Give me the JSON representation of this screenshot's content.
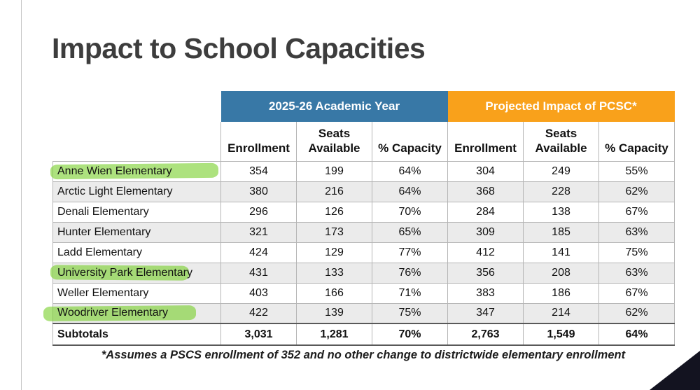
{
  "slide": {
    "title": "Impact to School Capacities",
    "footnote": "*Assumes a PSCS enrollment of 352 and no other change to districtwide elementary enrollment"
  },
  "table": {
    "group_headers": [
      {
        "label": "2025-26 Academic Year",
        "color": "#3878A6"
      },
      {
        "label": "Projected Impact of PCSC*",
        "color": "#F9A11B"
      }
    ],
    "column_headers": [
      "Enrollment",
      "Seats Available",
      "% Capacity",
      "Enrollment",
      "Seats Available",
      "% Capacity"
    ],
    "rows": [
      {
        "school": "Anne Wien Elementary",
        "highlighted": true,
        "values": [
          "354",
          "199",
          "64%",
          "304",
          "249",
          "55%"
        ]
      },
      {
        "school": "Arctic Light Elementary",
        "highlighted": false,
        "values": [
          "380",
          "216",
          "64%",
          "368",
          "228",
          "62%"
        ]
      },
      {
        "school": "Denali Elementary",
        "highlighted": false,
        "values": [
          "296",
          "126",
          "70%",
          "284",
          "138",
          "67%"
        ]
      },
      {
        "school": "Hunter Elementary",
        "highlighted": false,
        "values": [
          "321",
          "173",
          "65%",
          "309",
          "185",
          "63%"
        ]
      },
      {
        "school": "Ladd Elementary",
        "highlighted": false,
        "values": [
          "424",
          "129",
          "77%",
          "412",
          "141",
          "75%"
        ]
      },
      {
        "school": "University Park Elementary",
        "highlighted": true,
        "values": [
          "431",
          "133",
          "76%",
          "356",
          "208",
          "63%"
        ]
      },
      {
        "school": "Weller Elementary",
        "highlighted": false,
        "values": [
          "403",
          "166",
          "71%",
          "383",
          "186",
          "67%"
        ]
      },
      {
        "school": "Woodriver Elementary",
        "highlighted": true,
        "values": [
          "422",
          "139",
          "75%",
          "347",
          "214",
          "62%"
        ]
      }
    ],
    "subtotals": {
      "label": "Subtotals",
      "values": [
        "3,031",
        "1,281",
        "70%",
        "2,763",
        "1,549",
        "64%"
      ]
    }
  },
  "colors": {
    "header_blue": "#3878A6",
    "header_orange": "#F9A11B",
    "highlighter_green": "#7AD12E",
    "row_alt_gray": "#EBEBEB"
  }
}
